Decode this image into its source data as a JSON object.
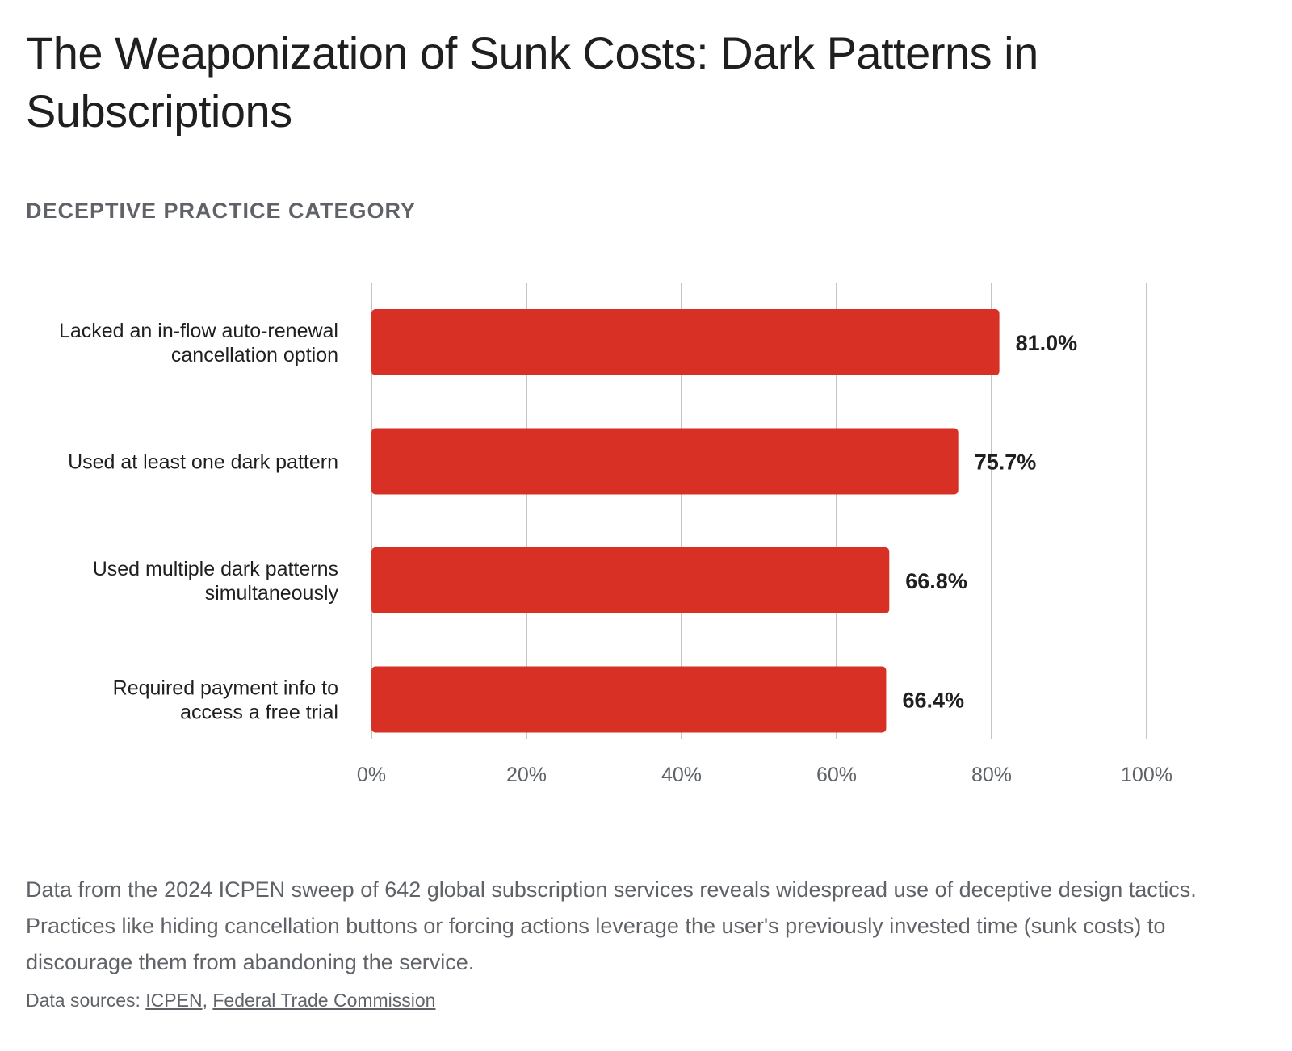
{
  "header": {
    "title": "The Weaponization of Sunk Costs: Dark Patterns in Subscriptions",
    "category_label": "DECEPTIVE PRACTICE CATEGORY"
  },
  "colors": {
    "bar": "#d93025",
    "grid": "#c4c4c4",
    "label_text": "#1f1f1f",
    "tick_text": "#5f6368"
  },
  "chart_data": {
    "type": "bar",
    "orientation": "horizontal",
    "categories": [
      [
        "Lacked an in-flow auto-renewal",
        "cancellation option"
      ],
      [
        "Used at least one dark pattern"
      ],
      [
        "Used multiple dark patterns",
        "simultaneously"
      ],
      [
        "Required payment info to",
        "access a free trial"
      ]
    ],
    "values": [
      81.0,
      75.7,
      66.8,
      66.4
    ],
    "value_labels": [
      "81.0%",
      "75.7%",
      "66.8%",
      "66.4%"
    ],
    "xlim": [
      0,
      100
    ],
    "x_ticks": [
      0,
      20,
      40,
      60,
      80,
      100
    ],
    "x_tick_labels": [
      "0%",
      "20%",
      "40%",
      "60%",
      "80%",
      "100%"
    ],
    "grid": true,
    "legend": "none"
  },
  "footer": {
    "description": "Data from the 2024 ICPEN sweep of 642 global subscription services reveals widespread use of deceptive design tactics. Practices like hiding cancellation buttons or forcing actions leverage the user's previously invested time (sunk costs) to discourage them from abandoning the service.",
    "sources_prefix": "Data sources: ",
    "sources_separator": ", ",
    "sources": [
      "ICPEN",
      "Federal Trade Commission"
    ]
  }
}
